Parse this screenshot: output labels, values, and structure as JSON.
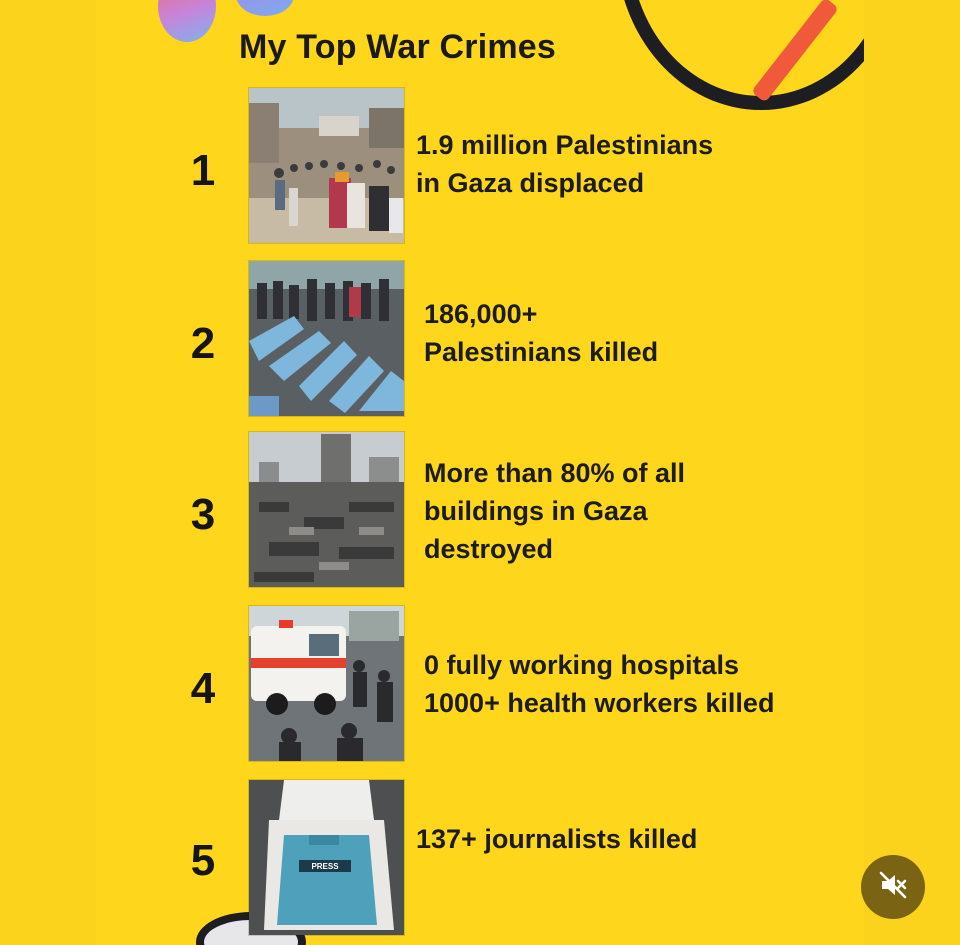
{
  "post": {
    "title": "My Top War Crimes",
    "items": [
      {
        "rank": "1",
        "lines": [
          "1.9 million Palestinians",
          "in Gaza displaced"
        ],
        "image": "crowd-displaced-photo"
      },
      {
        "rank": "2",
        "lines": [
          "186,000+",
          "Palestinians killed"
        ],
        "image": "wrapped-bodies-photo"
      },
      {
        "rank": "3",
        "lines": [
          "More than 80% of all",
          "buildings in Gaza",
          "destroyed"
        ],
        "image": "destroyed-buildings-photo"
      },
      {
        "rank": "4",
        "lines": [
          "0 fully working hospitals",
          "1000+ health workers killed"
        ],
        "image": "ambulance-photo"
      },
      {
        "rank": "5",
        "lines": [
          "137+ journalists killed"
        ],
        "image": "press-vest-photo"
      }
    ]
  },
  "controls": {
    "mute_icon": "speaker-muted-icon"
  },
  "colors": {
    "background": "#fed61b",
    "outer_background": "#fbd21c",
    "text": "#1a1a1a",
    "mute_button": "#7b6314",
    "accent_red": "#f05a3a"
  }
}
